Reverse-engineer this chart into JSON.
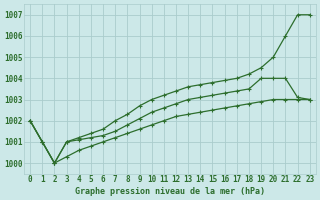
{
  "title": "Graphe pression niveau de la mer (hPa)",
  "bg_color": "#cce8e8",
  "grid_color": "#aacccc",
  "line_color": "#2d6e2d",
  "ylim": [
    999.5,
    1007.5
  ],
  "xlim": [
    -0.5,
    23.5
  ],
  "yticks": [
    1000,
    1001,
    1002,
    1003,
    1004,
    1005,
    1006,
    1007
  ],
  "xticks": [
    0,
    1,
    2,
    3,
    4,
    5,
    6,
    7,
    8,
    9,
    10,
    11,
    12,
    13,
    14,
    15,
    16,
    17,
    18,
    19,
    20,
    21,
    22,
    23
  ],
  "line1": [
    1002.0,
    1001.0,
    1000.0,
    1001.0,
    1001.2,
    1001.4,
    1001.6,
    1002.0,
    1002.3,
    1002.7,
    1003.0,
    1003.2,
    1003.4,
    1003.6,
    1003.7,
    1003.8,
    1003.9,
    1004.0,
    1004.2,
    1004.5,
    1005.0,
    1006.0,
    1007.0,
    1007.0
  ],
  "line2": [
    1002.0,
    1001.0,
    1000.0,
    1001.0,
    1001.1,
    1001.2,
    1001.3,
    1001.5,
    1001.8,
    1002.1,
    1002.4,
    1002.6,
    1002.8,
    1003.0,
    1003.1,
    1003.2,
    1003.3,
    1003.4,
    1003.5,
    1004.0,
    1004.0,
    1004.0,
    1003.1,
    1003.0
  ],
  "line3": [
    1002.0,
    1001.0,
    1000.0,
    1000.3,
    1000.6,
    1000.8,
    1001.0,
    1001.2,
    1001.4,
    1001.6,
    1001.8,
    1002.0,
    1002.2,
    1002.3,
    1002.4,
    1002.5,
    1002.6,
    1002.7,
    1002.8,
    1002.9,
    1003.0,
    1003.0,
    1003.0,
    1003.0
  ]
}
